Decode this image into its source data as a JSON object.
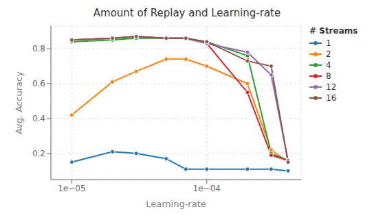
{
  "chart_data": {
    "type": "line",
    "title": "Amount of Replay and Learning-rate",
    "x_label": "Learning-rate",
    "y_label": "Avg. Accuracy",
    "legend_title": "# Streams",
    "x": [
      1e-05,
      2e-05,
      3e-05,
      5e-05,
      7e-05,
      0.0001,
      0.0002,
      0.0003,
      0.0004
    ],
    "series": [
      {
        "name": "1",
        "color": "#1f77b4",
        "marker": "circle",
        "values": [
          0.15,
          0.21,
          0.2,
          0.17,
          0.11,
          0.11,
          0.11,
          0.11,
          0.1
        ]
      },
      {
        "name": "2",
        "color": "#ff7f0e",
        "marker": "circle",
        "values": [
          0.42,
          0.61,
          0.67,
          0.74,
          0.74,
          0.7,
          0.6,
          0.22,
          0.15
        ]
      },
      {
        "name": "4",
        "color": "#2ca02c",
        "marker": "circle",
        "values": [
          0.84,
          0.85,
          0.86,
          0.86,
          0.86,
          0.84,
          0.76,
          0.2,
          0.16
        ]
      },
      {
        "name": "8",
        "color": "#d62728",
        "marker": "circle",
        "values": [
          0.85,
          0.86,
          0.87,
          0.86,
          0.86,
          0.83,
          0.55,
          0.19,
          0.16
        ]
      },
      {
        "name": "12",
        "color": "#9467bd",
        "marker": "circle",
        "values": [
          0.85,
          0.86,
          0.87,
          0.86,
          0.86,
          0.83,
          0.78,
          0.65,
          0.16
        ]
      },
      {
        "name": "16",
        "color": "#8c564b",
        "marker": "circle",
        "values": [
          0.85,
          0.86,
          0.87,
          0.86,
          0.86,
          0.84,
          0.73,
          0.7,
          0.15
        ]
      }
    ],
    "log": "x",
    "xlim": [
      7e-06,
      0.0005
    ],
    "xticks": [
      {
        "value": 1e-05,
        "label": "1e−05"
      },
      {
        "value": 0.0001,
        "label": "1e−04"
      }
    ],
    "ylim": [
      0.05,
      0.93
    ],
    "yticks": [
      0.2,
      0.4,
      0.6,
      0.8
    ],
    "grid": true,
    "legend": "right"
  }
}
